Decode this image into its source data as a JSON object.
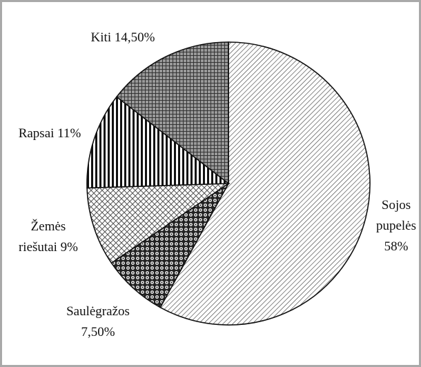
{
  "chart_data": {
    "type": "pie",
    "categories": [
      "Sojos pupelės",
      "Saulėgražos",
      "Žemės riešutai",
      "Rapsai",
      "Kiti"
    ],
    "values": [
      58,
      7.5,
      9,
      11,
      14.5
    ],
    "value_labels": [
      "58%",
      "7,50%",
      "9%",
      "11%",
      "14,50%"
    ]
  }
}
